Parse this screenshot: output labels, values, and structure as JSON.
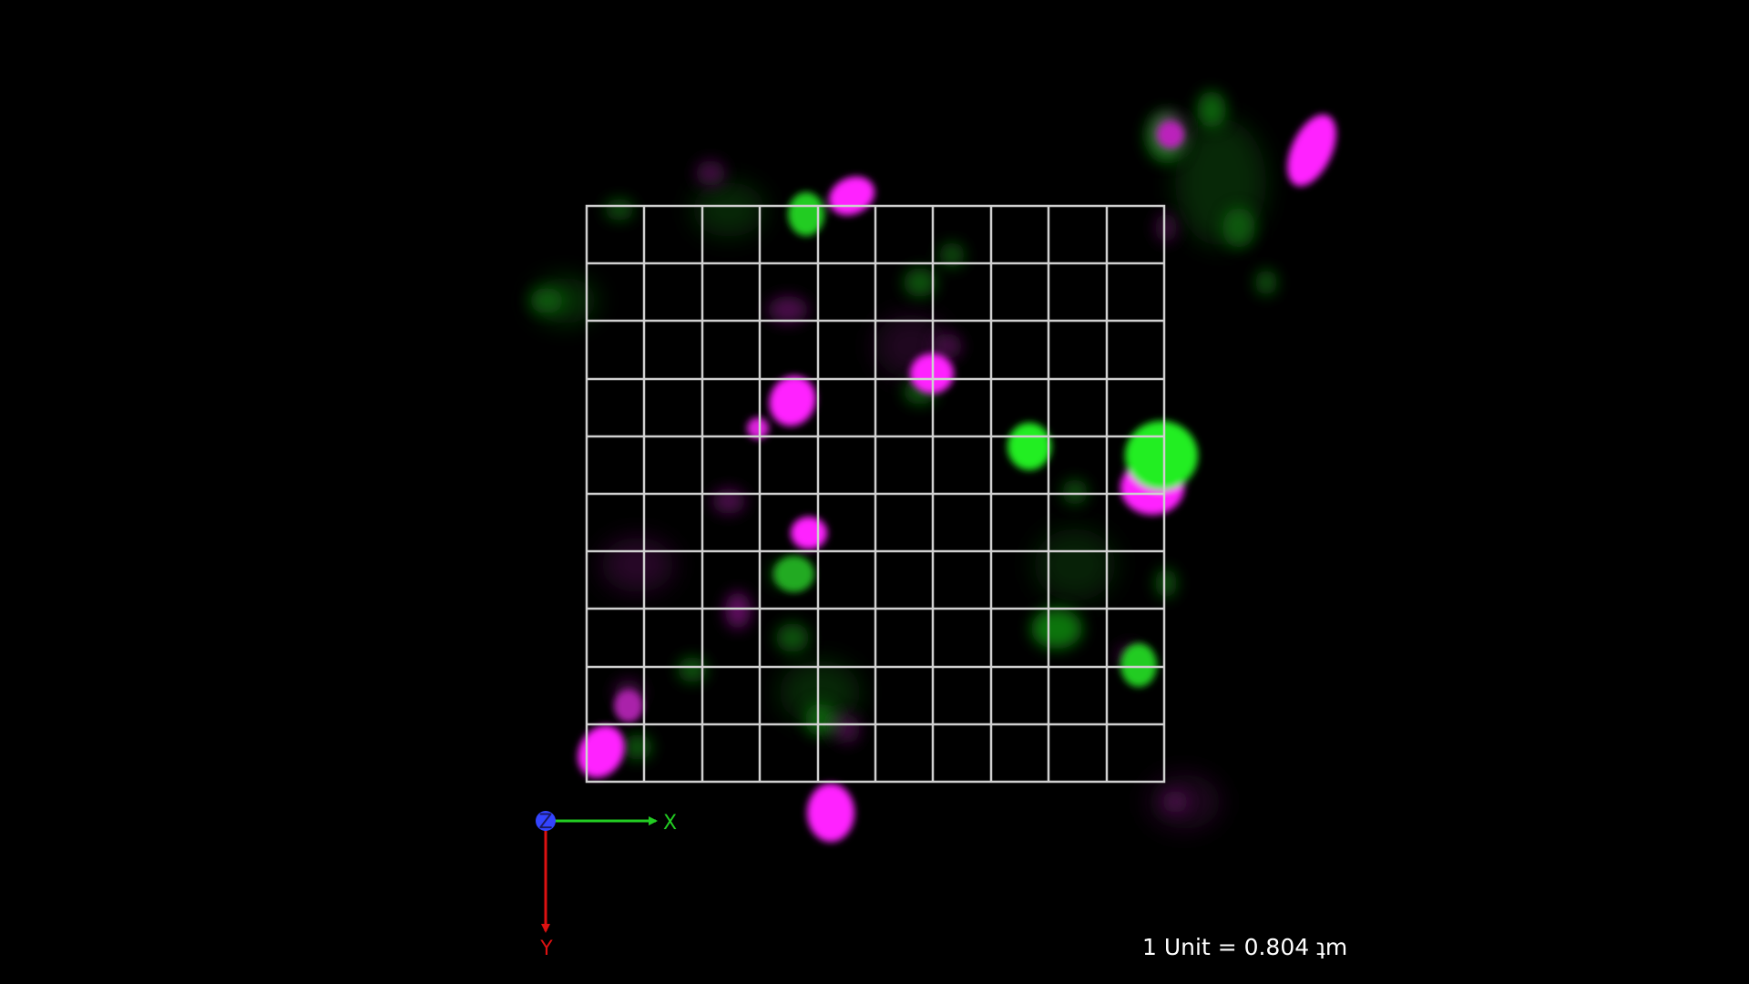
{
  "colors": {
    "background": "#000000",
    "grid": "#d0d0d0",
    "channel_1": "#ff22ff",
    "channel_2": "#22ee22",
    "axis_x": "#22cc22",
    "axis_y": "#dd1111",
    "axis_z": "#3344ff"
  },
  "axes": {
    "x_label": "X",
    "y_label": "Y",
    "z_label": "Z"
  },
  "scale": {
    "text": "1 Unit = 0.804 ʇm"
  }
}
